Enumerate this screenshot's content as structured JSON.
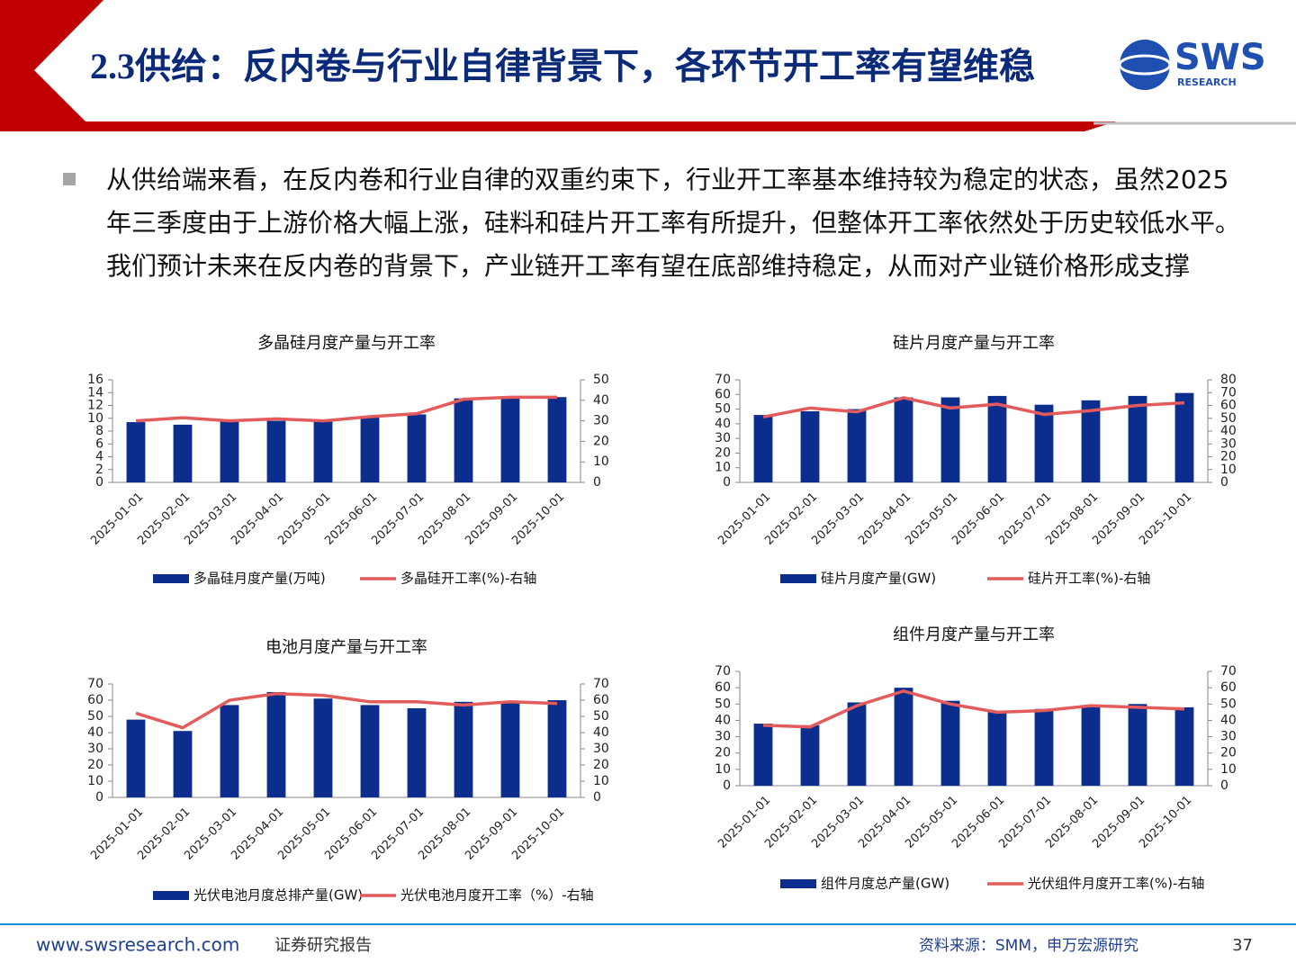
{
  "header": {
    "title": "2.3供给：反内卷与行业自律背景下，各环节开工率有望维稳",
    "logo": "SWS",
    "logo_sub": "RESEARCH"
  },
  "bullet": "从供给端来看，在反内卷和行业自律的双重约束下，行业开工率基本维持较为稳定的状态，虽然2025年三季度由于上游价格大幅上涨，硅料和硅片开工率有所提升，但整体开工率依然处于历史较低水平。我们预计未来在反内卷的背景下，产业链开工率有望在底部维持稳定，从而对产业链价格形成支撑",
  "footer": {
    "site": "www.swsresearch.com",
    "label": "证券研究报告",
    "source": "资料来源：SMM，申万宏源研究",
    "page": "37"
  },
  "chart_data": [
    {
      "type": "bar-line",
      "title": "多晶硅月度产量与开工率",
      "categories": [
        "2025-01-01",
        "2025-02-01",
        "2025-03-01",
        "2025-04-01",
        "2025-05-01",
        "2025-06-01",
        "2025-07-01",
        "2025-08-01",
        "2025-09-01",
        "2025-10-01"
      ],
      "series": [
        {
          "name": "多晶硅月度产量(万吨)",
          "type": "bar",
          "color": "#0b2d8e",
          "values": [
            9.4,
            9.0,
            9.6,
            9.6,
            9.6,
            10.1,
            10.6,
            13.1,
            13.1,
            13.3
          ]
        },
        {
          "name": "多晶硅开工率(%)-右轴",
          "type": "line",
          "axis": "y2",
          "color": "#e35b5b",
          "values": [
            30,
            31.5,
            30,
            31,
            30,
            32,
            33.5,
            40.5,
            41.5,
            41.5
          ]
        }
      ],
      "ylim": [
        0,
        16
      ],
      "yticks": [
        0,
        2,
        4,
        6,
        8,
        10,
        12,
        14,
        16
      ],
      "y2lim": [
        0,
        50
      ],
      "y2ticks": [
        0,
        10,
        20,
        30,
        40,
        50
      ]
    },
    {
      "type": "bar-line",
      "title": "硅片月度产量与开工率",
      "categories": [
        "2025-01-01",
        "2025-02-01",
        "2025-03-01",
        "2025-04-01",
        "2025-05-01",
        "2025-06-01",
        "2025-07-01",
        "2025-08-01",
        "2025-09-01",
        "2025-10-01"
      ],
      "series": [
        {
          "name": "硅片月度产量(GW)",
          "type": "bar",
          "color": "#0b2d8e",
          "values": [
            46,
            48.5,
            50,
            58,
            58,
            59,
            53,
            56,
            59,
            61
          ]
        },
        {
          "name": "硅片开工率(%)-右轴",
          "type": "line",
          "axis": "y2",
          "color": "#e35b5b",
          "values": [
            51,
            58,
            55,
            66,
            58,
            61,
            53,
            56,
            60,
            62
          ]
        }
      ],
      "ylim": [
        0,
        70
      ],
      "yticks": [
        0,
        10,
        20,
        30,
        40,
        50,
        60,
        70
      ],
      "y2lim": [
        0,
        80
      ],
      "y2ticks": [
        0,
        10,
        20,
        30,
        40,
        50,
        60,
        70,
        80
      ]
    },
    {
      "type": "bar-line",
      "title": "电池月度产量与开工率",
      "categories": [
        "2025-01-01",
        "2025-02-01",
        "2025-03-01",
        "2025-04-01",
        "2025-05-01",
        "2025-06-01",
        "2025-07-01",
        "2025-08-01",
        "2025-09-01",
        "2025-10-01"
      ],
      "series": [
        {
          "name": "光伏电池月度总排产量(GW)",
          "type": "bar",
          "color": "#0b2d8e",
          "values": [
            48,
            41,
            57,
            65,
            61,
            57,
            55,
            59,
            59,
            60
          ]
        },
        {
          "name": "光伏电池月度开工率（%）-右轴",
          "type": "line",
          "axis": "y2",
          "color": "#e35b5b",
          "values": [
            52,
            43,
            60,
            64,
            63,
            59,
            59,
            57,
            59,
            58
          ]
        }
      ],
      "ylim": [
        0,
        70
      ],
      "yticks": [
        0,
        10,
        20,
        30,
        40,
        50,
        60,
        70
      ],
      "y2lim": [
        0,
        70
      ],
      "y2ticks": [
        0,
        10,
        20,
        30,
        40,
        50,
        60,
        70
      ]
    },
    {
      "type": "bar-line",
      "title": "组件月度产量与开工率",
      "categories": [
        "2025-01-01",
        "2025-02-01",
        "2025-03-01",
        "2025-04-01",
        "2025-05-01",
        "2025-06-01",
        "2025-07-01",
        "2025-08-01",
        "2025-09-01",
        "2025-10-01"
      ],
      "series": [
        {
          "name": "组件月度总产量(GW)",
          "type": "bar",
          "color": "#0b2d8e",
          "values": [
            38,
            37,
            51,
            60,
            52,
            45,
            47,
            49,
            50,
            48
          ]
        },
        {
          "name": "光伏组件月度开工率(%)-右轴",
          "type": "line",
          "axis": "y2",
          "color": "#e35b5b",
          "values": [
            37,
            36,
            49,
            58,
            50,
            45,
            46,
            49,
            48,
            47
          ]
        }
      ],
      "ylim": [
        0,
        70
      ],
      "yticks": [
        0,
        10,
        20,
        30,
        40,
        50,
        60,
        70
      ],
      "y2lim": [
        0,
        70
      ],
      "y2ticks": [
        0,
        10,
        20,
        30,
        40,
        50,
        60,
        70
      ]
    }
  ]
}
